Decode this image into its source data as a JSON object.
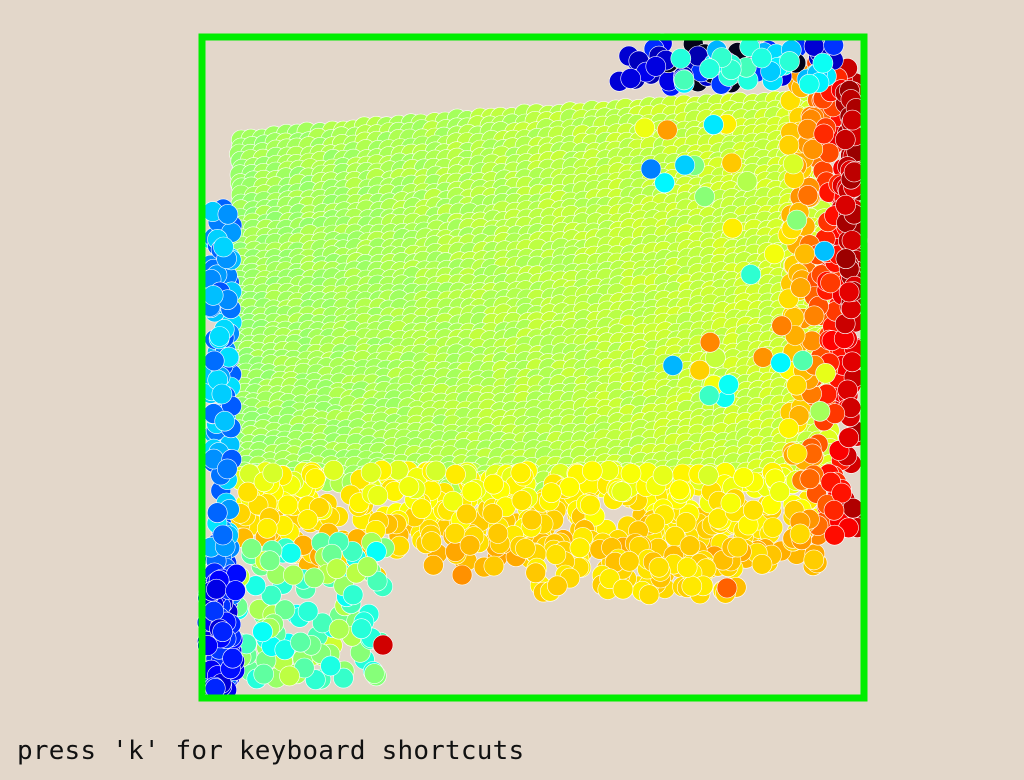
{
  "hint": {
    "text": "press 'k' for keyboard shortcuts"
  },
  "colors": {
    "background": "#e3d7ca",
    "frame": "#00ee00",
    "particle_outline": "#ffffff"
  },
  "colormap": "jet",
  "particles": {
    "shape": "circle",
    "field_state": "dense sheet of particles, greenish in the interior, blue along the left wall, orange to red along the right wall, a dark blue to black cluster at the top right corner, yellow to orange near the bottom"
  }
}
